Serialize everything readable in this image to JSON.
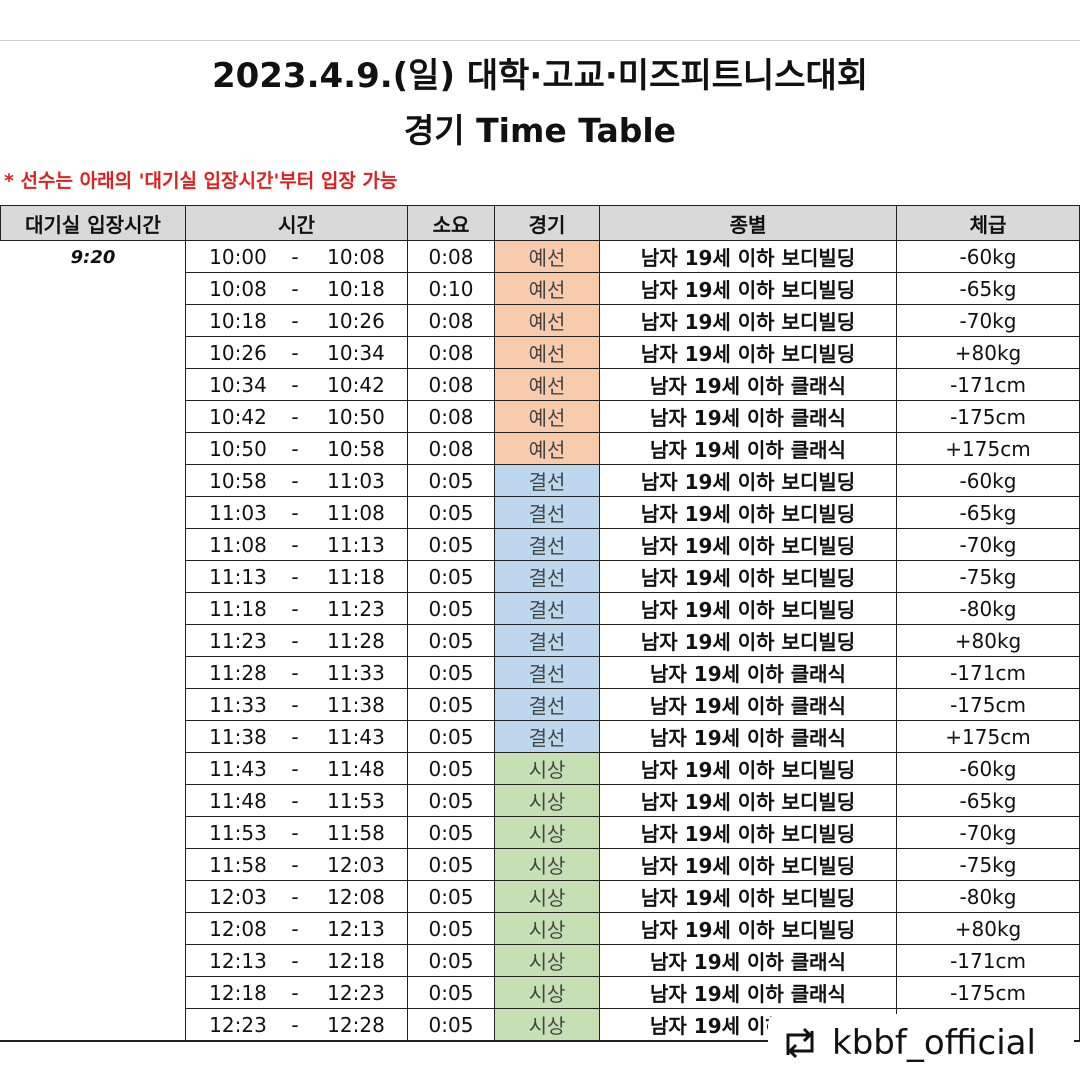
{
  "header": {
    "title": "2023.4.9.(일) 대학·고교·미즈피트니스대회",
    "subtitle": "경기 Time Table",
    "notice": "* 선수는 아래의 '대기실 입장시간'부터 입장 가능"
  },
  "table": {
    "columns": [
      "대기실 입장시간",
      "시간",
      "소요",
      "경기",
      "종별",
      "체급"
    ],
    "entry_time": "9:20",
    "separator": "-",
    "stage_colors": {
      "예선": "#f8cbad",
      "결선": "#bdd7ee",
      "시상": "#c6e0b4"
    },
    "rows": [
      {
        "start": "10:00",
        "end": "10:08",
        "duration": "0:08",
        "stage": "예선",
        "category": "남자 19세 이하 보디빌딩",
        "class": "-60kg"
      },
      {
        "start": "10:08",
        "end": "10:18",
        "duration": "0:10",
        "stage": "예선",
        "category": "남자 19세 이하 보디빌딩",
        "class": "-65kg"
      },
      {
        "start": "10:18",
        "end": "10:26",
        "duration": "0:08",
        "stage": "예선",
        "category": "남자 19세 이하 보디빌딩",
        "class": "-70kg"
      },
      {
        "start": "10:26",
        "end": "10:34",
        "duration": "0:08",
        "stage": "예선",
        "category": "남자 19세 이하 보디빌딩",
        "class": "+80kg"
      },
      {
        "start": "10:34",
        "end": "10:42",
        "duration": "0:08",
        "stage": "예선",
        "category": "남자 19세 이하 클래식",
        "class": "-171cm"
      },
      {
        "start": "10:42",
        "end": "10:50",
        "duration": "0:08",
        "stage": "예선",
        "category": "남자 19세 이하 클래식",
        "class": "-175cm"
      },
      {
        "start": "10:50",
        "end": "10:58",
        "duration": "0:08",
        "stage": "예선",
        "category": "남자 19세 이하 클래식",
        "class": "+175cm"
      },
      {
        "start": "10:58",
        "end": "11:03",
        "duration": "0:05",
        "stage": "결선",
        "category": "남자 19세 이하 보디빌딩",
        "class": "-60kg"
      },
      {
        "start": "11:03",
        "end": "11:08",
        "duration": "0:05",
        "stage": "결선",
        "category": "남자 19세 이하 보디빌딩",
        "class": "-65kg"
      },
      {
        "start": "11:08",
        "end": "11:13",
        "duration": "0:05",
        "stage": "결선",
        "category": "남자 19세 이하 보디빌딩",
        "class": "-70kg"
      },
      {
        "start": "11:13",
        "end": "11:18",
        "duration": "0:05",
        "stage": "결선",
        "category": "남자 19세 이하 보디빌딩",
        "class": "-75kg"
      },
      {
        "start": "11:18",
        "end": "11:23",
        "duration": "0:05",
        "stage": "결선",
        "category": "남자 19세 이하 보디빌딩",
        "class": "-80kg"
      },
      {
        "start": "11:23",
        "end": "11:28",
        "duration": "0:05",
        "stage": "결선",
        "category": "남자 19세 이하 보디빌딩",
        "class": "+80kg"
      },
      {
        "start": "11:28",
        "end": "11:33",
        "duration": "0:05",
        "stage": "결선",
        "category": "남자 19세 이하 클래식",
        "class": "-171cm"
      },
      {
        "start": "11:33",
        "end": "11:38",
        "duration": "0:05",
        "stage": "결선",
        "category": "남자 19세 이하 클래식",
        "class": "-175cm"
      },
      {
        "start": "11:38",
        "end": "11:43",
        "duration": "0:05",
        "stage": "결선",
        "category": "남자 19세 이하 클래식",
        "class": "+175cm"
      },
      {
        "start": "11:43",
        "end": "11:48",
        "duration": "0:05",
        "stage": "시상",
        "category": "남자 19세 이하 보디빌딩",
        "class": "-60kg"
      },
      {
        "start": "11:48",
        "end": "11:53",
        "duration": "0:05",
        "stage": "시상",
        "category": "남자 19세 이하 보디빌딩",
        "class": "-65kg"
      },
      {
        "start": "11:53",
        "end": "11:58",
        "duration": "0:05",
        "stage": "시상",
        "category": "남자 19세 이하 보디빌딩",
        "class": "-70kg"
      },
      {
        "start": "11:58",
        "end": "12:03",
        "duration": "0:05",
        "stage": "시상",
        "category": "남자 19세 이하 보디빌딩",
        "class": "-75kg"
      },
      {
        "start": "12:03",
        "end": "12:08",
        "duration": "0:05",
        "stage": "시상",
        "category": "남자 19세 이하 보디빌딩",
        "class": "-80kg"
      },
      {
        "start": "12:08",
        "end": "12:13",
        "duration": "0:05",
        "stage": "시상",
        "category": "남자 19세 이하 보디빌딩",
        "class": "+80kg"
      },
      {
        "start": "12:13",
        "end": "12:18",
        "duration": "0:05",
        "stage": "시상",
        "category": "남자 19세 이하 클래식",
        "class": "-171cm"
      },
      {
        "start": "12:18",
        "end": "12:23",
        "duration": "0:05",
        "stage": "시상",
        "category": "남자 19세 이하 클래식",
        "class": "-175cm"
      },
      {
        "start": "12:23",
        "end": "12:28",
        "duration": "0:05",
        "stage": "시상",
        "category": "남자 19세 이하 클래식"
      }
    ]
  },
  "watermark": "kbbf_official"
}
